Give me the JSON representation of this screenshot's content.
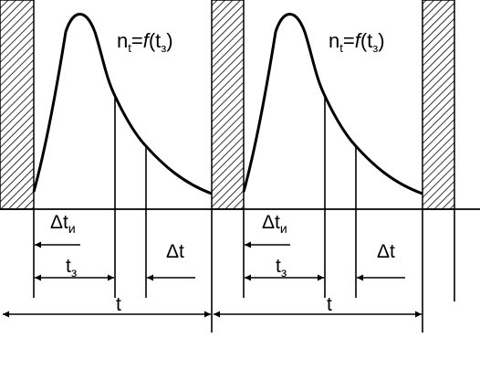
{
  "panels": [
    {
      "formula": {
        "lhs_base": "n",
        "lhs_sub": "t",
        "eq": "=",
        "fn": "f",
        "open": "(t",
        "arg_sub": "з",
        "close": ")"
      },
      "dt_i": {
        "base": "Δt",
        "sub": "и"
      },
      "t_z": {
        "base": "t",
        "sub": "з"
      },
      "dt": "Δt",
      "t": "t"
    },
    {
      "formula": {
        "lhs_base": "n",
        "lhs_sub": "t",
        "eq": "=",
        "fn": "f",
        "open": "(t",
        "arg_sub": "з",
        "close": ")"
      },
      "dt_i": {
        "base": "Δt",
        "sub": "и"
      },
      "t_z": {
        "base": "t",
        "sub": "з"
      },
      "dt": "Δt",
      "t": "t"
    }
  ]
}
